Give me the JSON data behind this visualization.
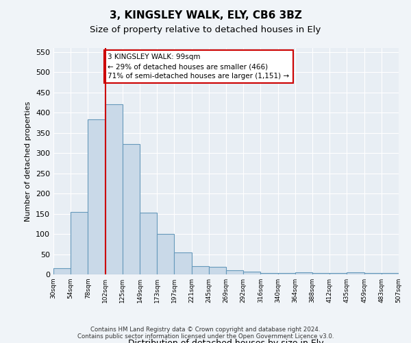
{
  "title1": "3, KINGSLEY WALK, ELY, CB6 3BZ",
  "title2": "Size of property relative to detached houses in Ely",
  "xlabel": "Distribution of detached houses by size in Ely",
  "ylabel": "Number of detached properties",
  "bin_edges": [
    "30sqm",
    "54sqm",
    "78sqm",
    "102sqm",
    "125sqm",
    "149sqm",
    "173sqm",
    "197sqm",
    "221sqm",
    "245sqm",
    "269sqm",
    "292sqm",
    "316sqm",
    "340sqm",
    "364sqm",
    "388sqm",
    "412sqm",
    "435sqm",
    "459sqm",
    "483sqm",
    "507sqm"
  ],
  "bar_values": [
    15,
    155,
    383,
    420,
    323,
    153,
    100,
    55,
    20,
    18,
    10,
    6,
    3,
    3,
    5,
    3,
    3,
    5,
    3,
    3
  ],
  "bar_color": "#c9d9e8",
  "bar_edge_color": "#6699bb",
  "red_line_x": 2.5,
  "red_line_color": "#cc0000",
  "annotation_text": "3 KINGSLEY WALK: 99sqm\n← 29% of detached houses are smaller (466)\n71% of semi-detached houses are larger (1,151) →",
  "annotation_box_color": "#ffffff",
  "annotation_box_edge_color": "#cc0000",
  "ylim": [
    0,
    560
  ],
  "yticks": [
    0,
    50,
    100,
    150,
    200,
    250,
    300,
    350,
    400,
    450,
    500,
    550
  ],
  "footnote": "Contains HM Land Registry data © Crown copyright and database right 2024.\nContains public sector information licensed under the Open Government Licence v3.0.",
  "background_color": "#f0f4f8",
  "plot_bg_color": "#e8eef4"
}
